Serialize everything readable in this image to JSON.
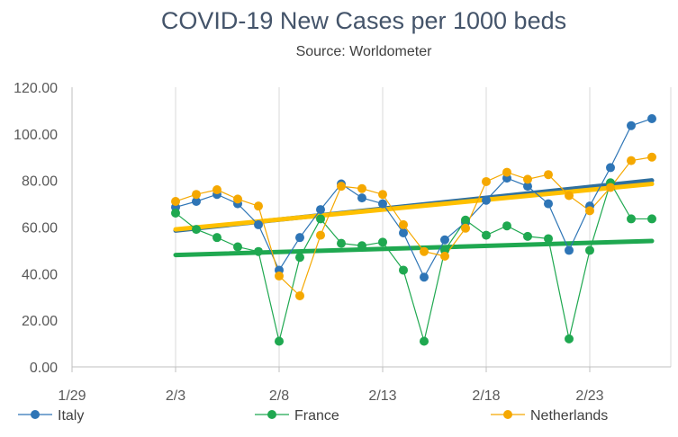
{
  "chart_data": {
    "type": "line",
    "title": "COVID-19 New Cases per 1000 beds",
    "subtitle": "Source: Worldometer",
    "xlabel": "",
    "ylabel": "",
    "x_ticks": [
      "1/29",
      "2/3",
      "2/8",
      "2/13",
      "2/18",
      "2/23"
    ],
    "x_range": [
      "1/29",
      "2/26"
    ],
    "ylim": [
      0,
      120
    ],
    "y_ticks": [
      "0.00",
      "20.00",
      "40.00",
      "60.00",
      "80.00",
      "100.00",
      "120.00"
    ],
    "grid": "vertical",
    "legend_position": "bottom",
    "x": [
      "2/3",
      "2/4",
      "2/5",
      "2/6",
      "2/7",
      "2/8",
      "2/9",
      "2/10",
      "2/11",
      "2/12",
      "2/13",
      "2/14",
      "2/15",
      "2/16",
      "2/17",
      "2/18",
      "2/19",
      "2/20",
      "2/21",
      "2/22",
      "2/23",
      "2/24",
      "2/25",
      "2/26"
    ],
    "series": [
      {
        "name": "Italy",
        "color": "#2E75B6",
        "values": [
          68.5,
          71,
          74,
          70,
          61,
          41.5,
          55.5,
          67.5,
          78.5,
          72.5,
          70,
          57.5,
          38.5,
          54.5,
          62,
          71.5,
          81,
          77.5,
          70,
          50,
          69,
          85.5,
          103.5,
          106.5
        ],
        "trend": [
          58.5,
          80
        ]
      },
      {
        "name": "France",
        "color": "#1FA850",
        "values": [
          66,
          59,
          55.5,
          51.5,
          49.5,
          11,
          47,
          63.5,
          53,
          52,
          53.5,
          41.5,
          11,
          50,
          63,
          56.5,
          60.5,
          56,
          55,
          12,
          50,
          79,
          63.5,
          63.5
        ],
        "trend": [
          48,
          54
        ]
      },
      {
        "name": "Netherlands",
        "color": "#F5A800",
        "values": [
          71,
          74,
          76,
          72,
          69,
          39,
          30.5,
          56.5,
          77.5,
          76.5,
          74,
          61,
          49.5,
          47.5,
          59.5,
          79.5,
          83.5,
          80.5,
          82.5,
          73.5,
          67,
          77,
          88.5,
          90
        ],
        "trend": [
          59,
          78.5
        ]
      }
    ],
    "trend_colors": {
      "Italy": "#2F6F9E",
      "France": "#1FA850",
      "Netherlands": "#FFC000"
    }
  }
}
